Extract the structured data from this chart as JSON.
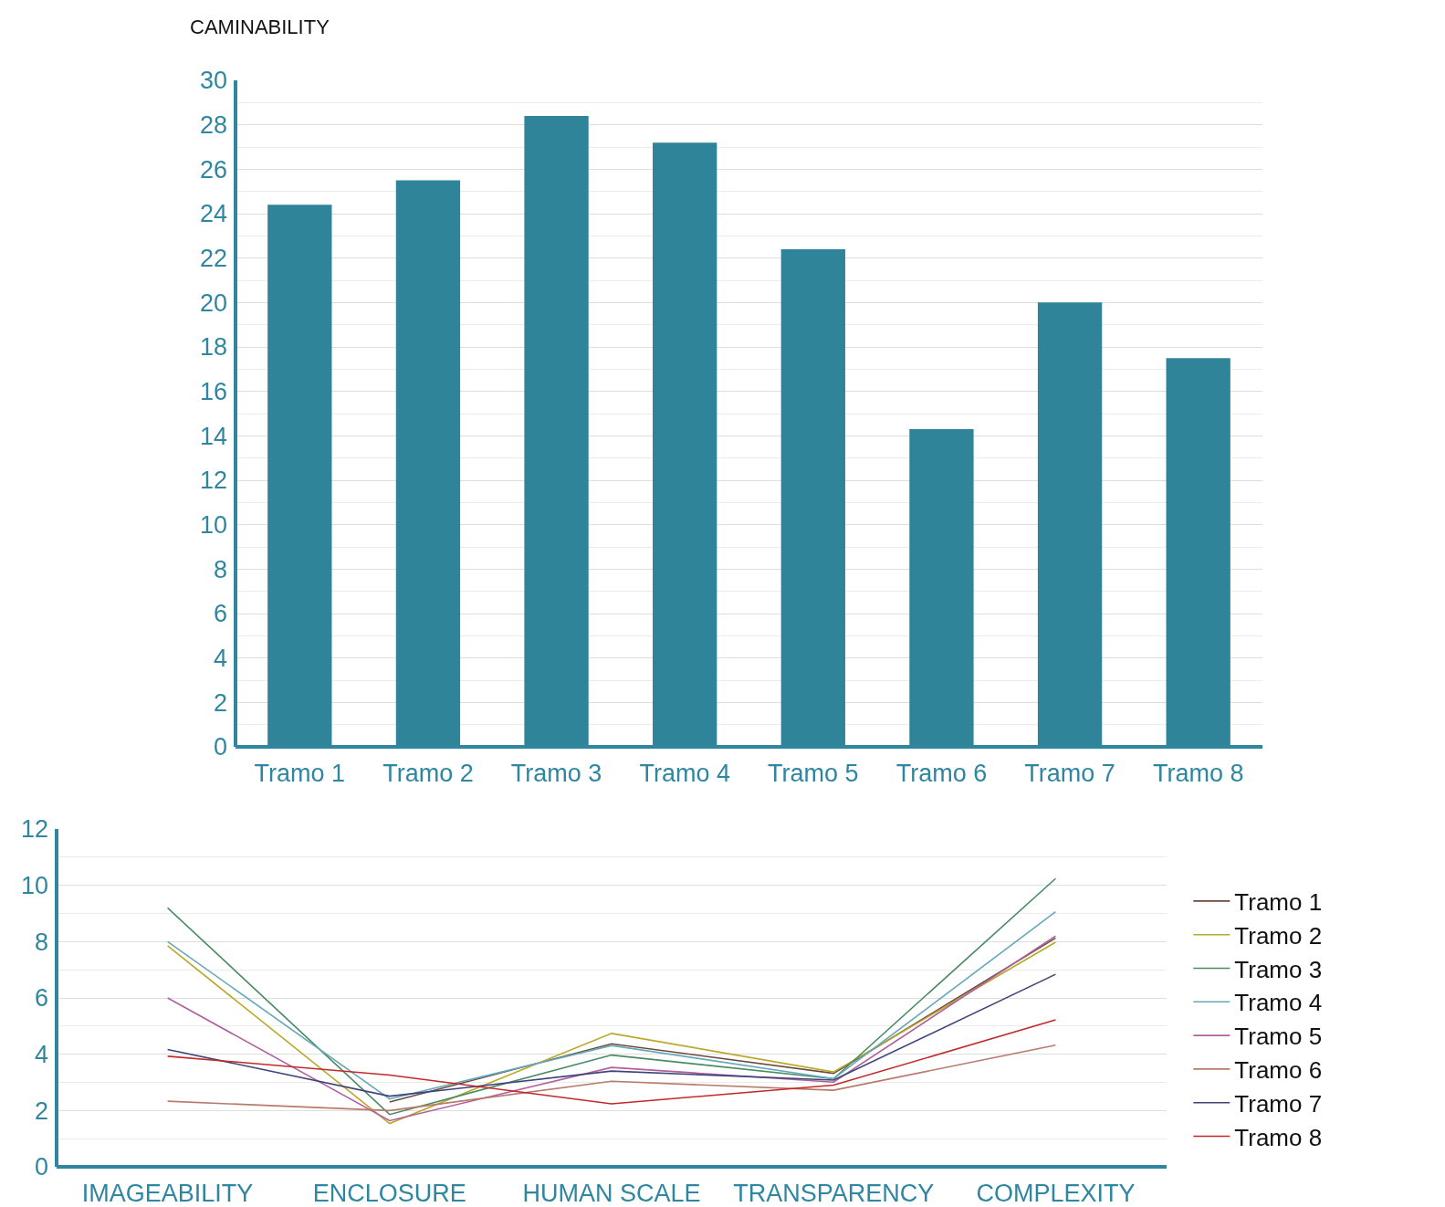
{
  "chart_data": [
    {
      "type": "bar",
      "title": "CAMINABILITY",
      "categories": [
        "Tramo 1",
        "Tramo 2",
        "Tramo 3",
        "Tramo 4",
        "Tramo 5",
        "Tramo 6",
        "Tramo 7",
        "Tramo 8"
      ],
      "values": [
        24.4,
        25.5,
        28.4,
        27.2,
        22.4,
        14.3,
        20.0,
        17.5
      ],
      "color": "#2f8499",
      "ylim": [
        0,
        30
      ],
      "yticks": [
        0,
        2,
        4,
        6,
        8,
        10,
        12,
        14,
        16,
        18,
        20,
        22,
        24,
        26,
        28,
        30
      ],
      "grid": "y",
      "legend": false
    },
    {
      "type": "line",
      "categories": [
        "IMAGEABILITY",
        "ENCLOSURE",
        "HUMAN SCALE",
        "TRANSPARENCY",
        "COMPLEXITY"
      ],
      "ylim": [
        0,
        12
      ],
      "yticks": [
        0,
        2,
        4,
        6,
        8,
        10,
        12
      ],
      "grid": "y",
      "legend": "right",
      "marker": "none",
      "line_style": "solid",
      "series": [
        {
          "name": "Tramo 1",
          "color": "#6b4a3c",
          "values": [
            null,
            2.3,
            4.37,
            3.32,
            8.13
          ]
        },
        {
          "name": "Tramo 2",
          "color": "#b8a92a",
          "values": [
            7.85,
            1.54,
            4.74,
            3.37,
            7.98
          ]
        },
        {
          "name": "Tramo 3",
          "color": "#4a8a64",
          "values": [
            9.2,
            1.86,
            3.97,
            3.13,
            10.24
          ]
        },
        {
          "name": "Tramo 4",
          "color": "#65a8b8",
          "values": [
            8.0,
            2.41,
            4.31,
            3.13,
            9.06
          ]
        },
        {
          "name": "Tramo 5",
          "color": "#b0609c",
          "values": [
            6.0,
            1.64,
            3.53,
            3.01,
            8.2
          ]
        },
        {
          "name": "Tramo 6",
          "color": "#b87a6c",
          "values": [
            2.33,
            2.0,
            3.04,
            2.72,
            4.32
          ]
        },
        {
          "name": "Tramo 7",
          "color": "#3e4478",
          "values": [
            4.17,
            2.51,
            3.4,
            3.08,
            6.84
          ]
        },
        {
          "name": "Tramo 8",
          "color": "#c02a2a",
          "values": [
            3.93,
            3.26,
            2.24,
            2.9,
            5.22
          ]
        }
      ]
    }
  ]
}
